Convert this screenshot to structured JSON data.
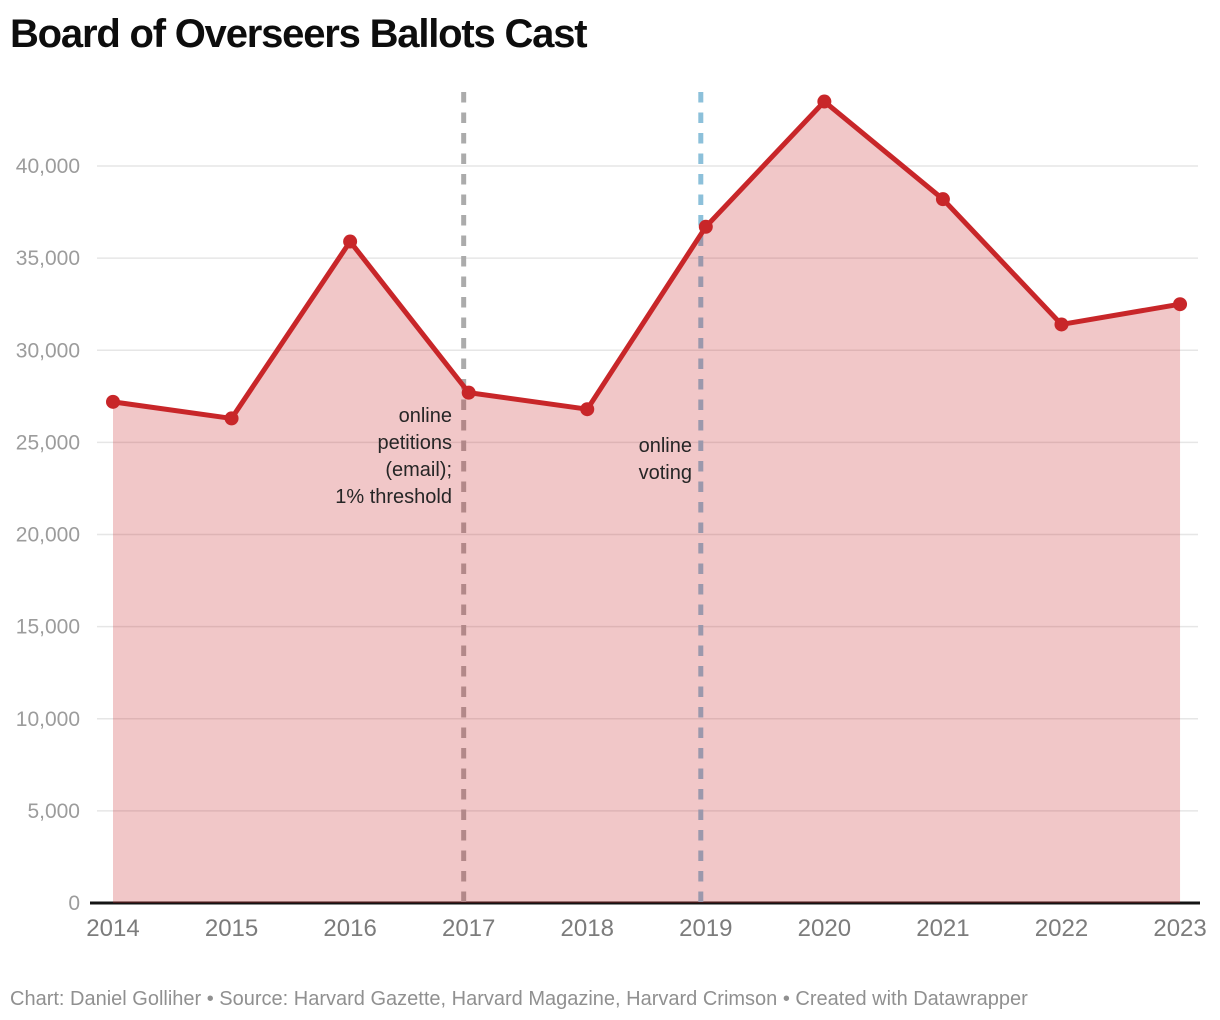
{
  "header": {
    "title": "Board of Overseers Ballots Cast"
  },
  "annotations": {
    "petitions": {
      "lines": [
        "online",
        "petitions",
        "(email);",
        "1% threshold"
      ]
    },
    "voting": {
      "lines": [
        "online",
        "voting"
      ]
    }
  },
  "footer": {
    "text": "Chart: Daniel Golliher • Source: Harvard Gazette, Harvard Magazine, Harvard Crimson • Created with Datawrapper"
  },
  "colors": {
    "line": "#c82629",
    "fill": "rgba(200,38,41,0.26)",
    "grid": "#e6e6e6",
    "axis": "#141414",
    "vline_gray": "#ababab",
    "vline_blue": "#8cc0da",
    "y_label": "#9c9c9c",
    "x_label": "#7c7c7c"
  },
  "chart_data": {
    "type": "area",
    "title": "Board of Overseers Ballots Cast",
    "categories": [
      2014,
      2015,
      2016,
      2017,
      2018,
      2019,
      2020,
      2021,
      2022,
      2023
    ],
    "values": [
      27200,
      26300,
      35900,
      27700,
      26800,
      36700,
      43500,
      38200,
      31400,
      32500
    ],
    "xlabel": "",
    "ylabel": "",
    "ylim": [
      0,
      44000
    ],
    "y_ticks": [
      0,
      5000,
      10000,
      15000,
      20000,
      25000,
      30000,
      35000,
      40000
    ],
    "grid": true,
    "legend": false,
    "marker": "circle",
    "vlines": [
      {
        "x": 2017,
        "style": "dashed",
        "color": "#ababab",
        "label": "online petitions (email); 1% threshold"
      },
      {
        "x": 2019,
        "style": "dashed",
        "color": "#8cc0da",
        "label": "online voting"
      }
    ]
  }
}
